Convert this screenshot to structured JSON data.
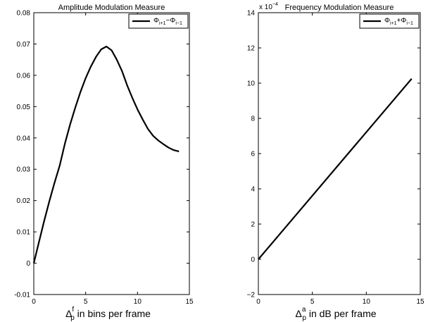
{
  "chart_data": [
    {
      "type": "line",
      "title": "Amplitude Modulation Measure",
      "xlabel": {
        "symbol": "Δ",
        "sup": "f",
        "sub": "p",
        "text": " in bins per frame"
      },
      "ylabel": "",
      "xlim": [
        0,
        15
      ],
      "ylim": [
        -0.01,
        0.08
      ],
      "xticks": [
        0,
        5,
        10,
        15
      ],
      "yticks": [
        -0.01,
        0,
        0.01,
        0.02,
        0.03,
        0.04,
        0.05,
        0.06,
        0.07,
        0.08
      ],
      "ytick_labels": [
        "-0.01",
        "0",
        "0.01",
        "0.02",
        "0.03",
        "0.04",
        "0.05",
        "0.06",
        "0.07",
        "0.08"
      ],
      "grid": false,
      "legend": {
        "position": "top-right",
        "entries": [
          {
            "base": "Φ",
            "sub1": "i+1",
            "op": "−Φ",
            "sub2": "i−1"
          }
        ]
      },
      "series": [
        {
          "color": "#000000",
          "x": [
            0,
            0.5,
            1,
            1.5,
            2,
            2.5,
            3,
            3.5,
            4,
            4.5,
            5,
            5.5,
            6,
            6.5,
            7,
            7.5,
            8,
            8.5,
            9,
            9.5,
            10,
            10.5,
            11,
            11.5,
            12,
            12.5,
            13,
            13.5,
            14
          ],
          "y": [
            0,
            0.0068,
            0.0135,
            0.0198,
            0.0257,
            0.0312,
            0.0382,
            0.0443,
            0.0497,
            0.0547,
            0.0591,
            0.0628,
            0.0659,
            0.0683,
            0.0692,
            0.068,
            0.065,
            0.0614,
            0.0568,
            0.0528,
            0.0491,
            0.0459,
            0.0429,
            0.0407,
            0.0392,
            0.038,
            0.0369,
            0.0361,
            0.0357
          ]
        }
      ]
    },
    {
      "type": "line",
      "title": "Frequency Modulation Measure",
      "xlabel": {
        "symbol": "Δ",
        "sup": "a",
        "sub": "p",
        "text": " in dB per frame"
      },
      "ylabel": "",
      "xlim": [
        0,
        15
      ],
      "ylim": [
        -2,
        14
      ],
      "xticks": [
        0,
        5,
        10,
        15
      ],
      "yticks": [
        -2,
        0,
        2,
        4,
        6,
        8,
        10,
        12,
        14
      ],
      "ytick_labels": [
        "−2",
        "0",
        "2",
        "4",
        "6",
        "8",
        "10",
        "12",
        "14"
      ],
      "y_scale_label": {
        "base": "x 10",
        "exp": "−4"
      },
      "grid": false,
      "legend": {
        "position": "top-right",
        "entries": [
          {
            "base": "Φ",
            "sub1": "i+1",
            "op": "+Φ",
            "sub2": "i−1"
          }
        ]
      },
      "series": [
        {
          "color": "#000000",
          "x": [
            0,
            14.2
          ],
          "y": [
            0,
            10.25
          ]
        }
      ]
    }
  ]
}
